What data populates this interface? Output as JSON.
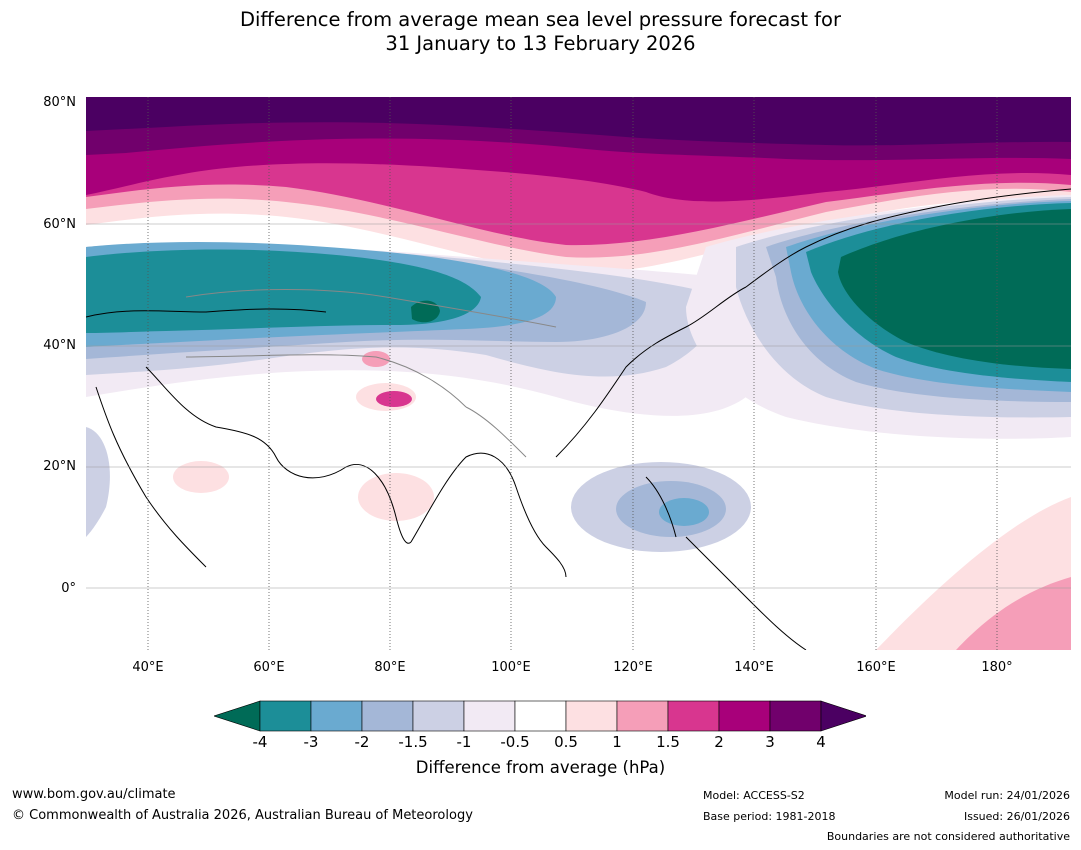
{
  "title_line1": "Difference from average mean sea level pressure forecast for",
  "title_line2": "31 January to 13 February 2026",
  "map": {
    "lat_labels": [
      "80°N",
      "60°N",
      "40°N",
      "20°N",
      "0°"
    ],
    "lon_labels": [
      "40°E",
      "60°E",
      "80°E",
      "100°E",
      "120°E",
      "140°E",
      "160°E",
      "180°"
    ]
  },
  "colorbar": {
    "ticks": [
      "-4",
      "-3",
      "-2",
      "-1.5",
      "-1",
      "-0.5",
      "0.5",
      "1",
      "1.5",
      "2",
      "3",
      "4"
    ],
    "colors": [
      "#006b57",
      "#1c8e98",
      "#6aaad0",
      "#a4b7d7",
      "#ccd0e4",
      "#f2eaf4",
      "#ffffff",
      "#fde0e2",
      "#f59eb8",
      "#d8368f",
      "#a8007a",
      "#71006c",
      "#4b0062"
    ],
    "label": "Difference from average (hPa)"
  },
  "footer": {
    "website": "www.bom.gov.au/climate",
    "copyright": "© Commonwealth of Australia 2026, Australian Bureau of Meteorology",
    "model": "Model: ACCESS-S2",
    "base_period": "Base period: 1981-2018",
    "model_run": "Model run: 24/01/2026",
    "issued": "Issued: 26/01/2026",
    "disclaimer": "Boundaries are not considered authoritative"
  }
}
